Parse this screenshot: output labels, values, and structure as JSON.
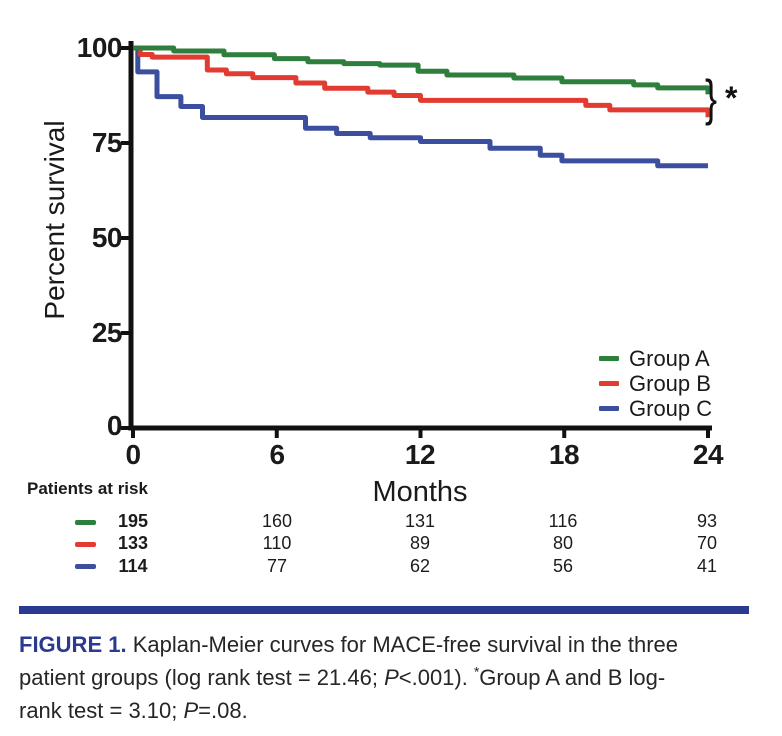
{
  "palette": {
    "group_a_green": "#2e7e3d",
    "group_b_red": "#e23b31",
    "group_c_blue": "#3c4f9f",
    "accent_navy": "#2b3990",
    "ink": "#1a1a1a"
  },
  "chart_data": {
    "type": "line",
    "subtype": "kaplan_meier_step",
    "title": "",
    "xlabel": "Months",
    "ylabel": "Percent survival",
    "xlim": [
      0,
      24
    ],
    "ylim": [
      0,
      100
    ],
    "x_ticks": [
      0,
      6,
      12,
      18,
      24
    ],
    "y_ticks": [
      100,
      75,
      50,
      25,
      0
    ],
    "x_tick_labels": [
      "0",
      "6",
      "12",
      "18",
      "24"
    ],
    "y_tick_labels": [
      "100",
      "75",
      "50",
      "25",
      "0"
    ],
    "grid": false,
    "legend_position": "inside lower right",
    "series": [
      {
        "name": "Group A",
        "color": "#2e7e3d",
        "steps": [
          [
            0,
            100
          ],
          [
            1.7,
            99.2
          ],
          [
            3.8,
            98.2
          ],
          [
            5.9,
            97.2
          ],
          [
            7.3,
            96.4
          ],
          [
            8.8,
            95.9
          ],
          [
            10.3,
            95.5
          ],
          [
            11.9,
            93.9
          ],
          [
            13.1,
            92.9
          ],
          [
            15.9,
            92.1
          ],
          [
            17.9,
            91.1
          ],
          [
            20.9,
            90.3
          ],
          [
            21.9,
            89.5
          ]
        ],
        "end_tick_pct": 87.8
      },
      {
        "name": "Group B",
        "color": "#e23b31",
        "steps": [
          [
            0,
            100
          ],
          [
            0.3,
            98.3
          ],
          [
            0.8,
            97.6
          ],
          [
            3.1,
            94.2
          ],
          [
            3.9,
            93.2
          ],
          [
            5.0,
            92.2
          ],
          [
            6.8,
            90.8
          ],
          [
            8.0,
            89.4
          ],
          [
            9.8,
            88.4
          ],
          [
            10.9,
            87.5
          ],
          [
            12.0,
            86.2
          ],
          [
            18.9,
            84.9
          ],
          [
            19.9,
            83.7
          ]
        ],
        "end_tick_pct": 81.8
      },
      {
        "name": "Group C",
        "color": "#3c4f9f",
        "steps": [
          [
            0,
            100
          ],
          [
            0.2,
            93.7
          ],
          [
            1.0,
            87.2
          ],
          [
            2.0,
            84.6
          ],
          [
            2.9,
            81.7
          ],
          [
            7.2,
            78.9
          ],
          [
            8.5,
            77.5
          ],
          [
            9.9,
            76.4
          ],
          [
            12.0,
            75.4
          ],
          [
            14.9,
            73.6
          ],
          [
            17.0,
            71.8
          ],
          [
            17.9,
            70.3
          ],
          [
            21.9,
            69.0
          ]
        ],
        "end_tick_pct": null
      }
    ],
    "annotation": {
      "bracket": "}",
      "star": "*"
    }
  },
  "risk_table": {
    "header": "Patients at risk",
    "timepoints": [
      "0",
      "6",
      "12",
      "18",
      "24"
    ],
    "rows": [
      {
        "group": "Group A",
        "color": "#2e7e3d",
        "values": [
          "195",
          "160",
          "131",
          "116",
          "93"
        ]
      },
      {
        "group": "Group B",
        "color": "#e23b31",
        "values": [
          "133",
          "110",
          "89",
          "80",
          "70"
        ]
      },
      {
        "group": "Group C",
        "color": "#3c4f9f",
        "values": [
          "114",
          "77",
          "62",
          "56",
          "41"
        ]
      }
    ]
  },
  "caption": {
    "label": "FIGURE 1.",
    "line1": " Kaplan-Meier curves for MACE-free survival in the three",
    "line2_a": "patient groups (log rank test = 21.46; ",
    "line2_p": "P",
    "line2_b": "<.001). ",
    "line2_star": "*",
    "line2_c": "Group A and B log-",
    "line3_a": "rank test = 3.10; ",
    "line3_p": "P",
    "line3_b": "=.08."
  }
}
